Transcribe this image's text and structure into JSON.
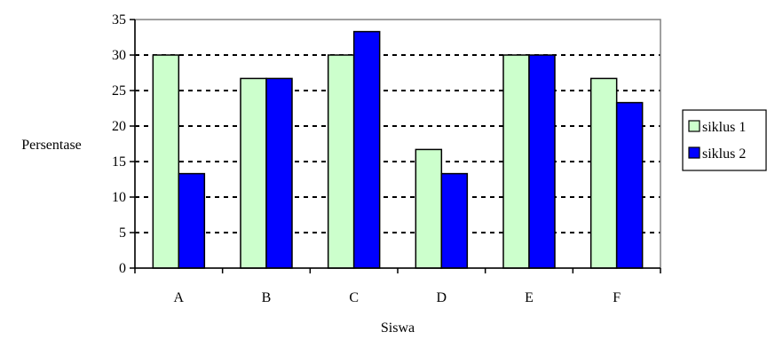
{
  "chart_data": {
    "type": "bar",
    "title": "",
    "xlabel": "Siswa",
    "ylabel": "Persentase",
    "categories": [
      "A",
      "B",
      "C",
      "D",
      "E",
      "F"
    ],
    "ylim": [
      0,
      35
    ],
    "yticks": [
      "0",
      "5",
      "10",
      "15",
      "20",
      "25",
      "30",
      "35"
    ],
    "grid": true,
    "legend_position": "right",
    "series": [
      {
        "name": "siklus 1",
        "color": "#ccffcc",
        "values": [
          30,
          26.7,
          30,
          16.7,
          30,
          26.7
        ]
      },
      {
        "name": "siklus 2",
        "color": "#0000ff",
        "values": [
          13.3,
          26.7,
          33.3,
          13.3,
          30,
          23.3
        ]
      }
    ]
  }
}
